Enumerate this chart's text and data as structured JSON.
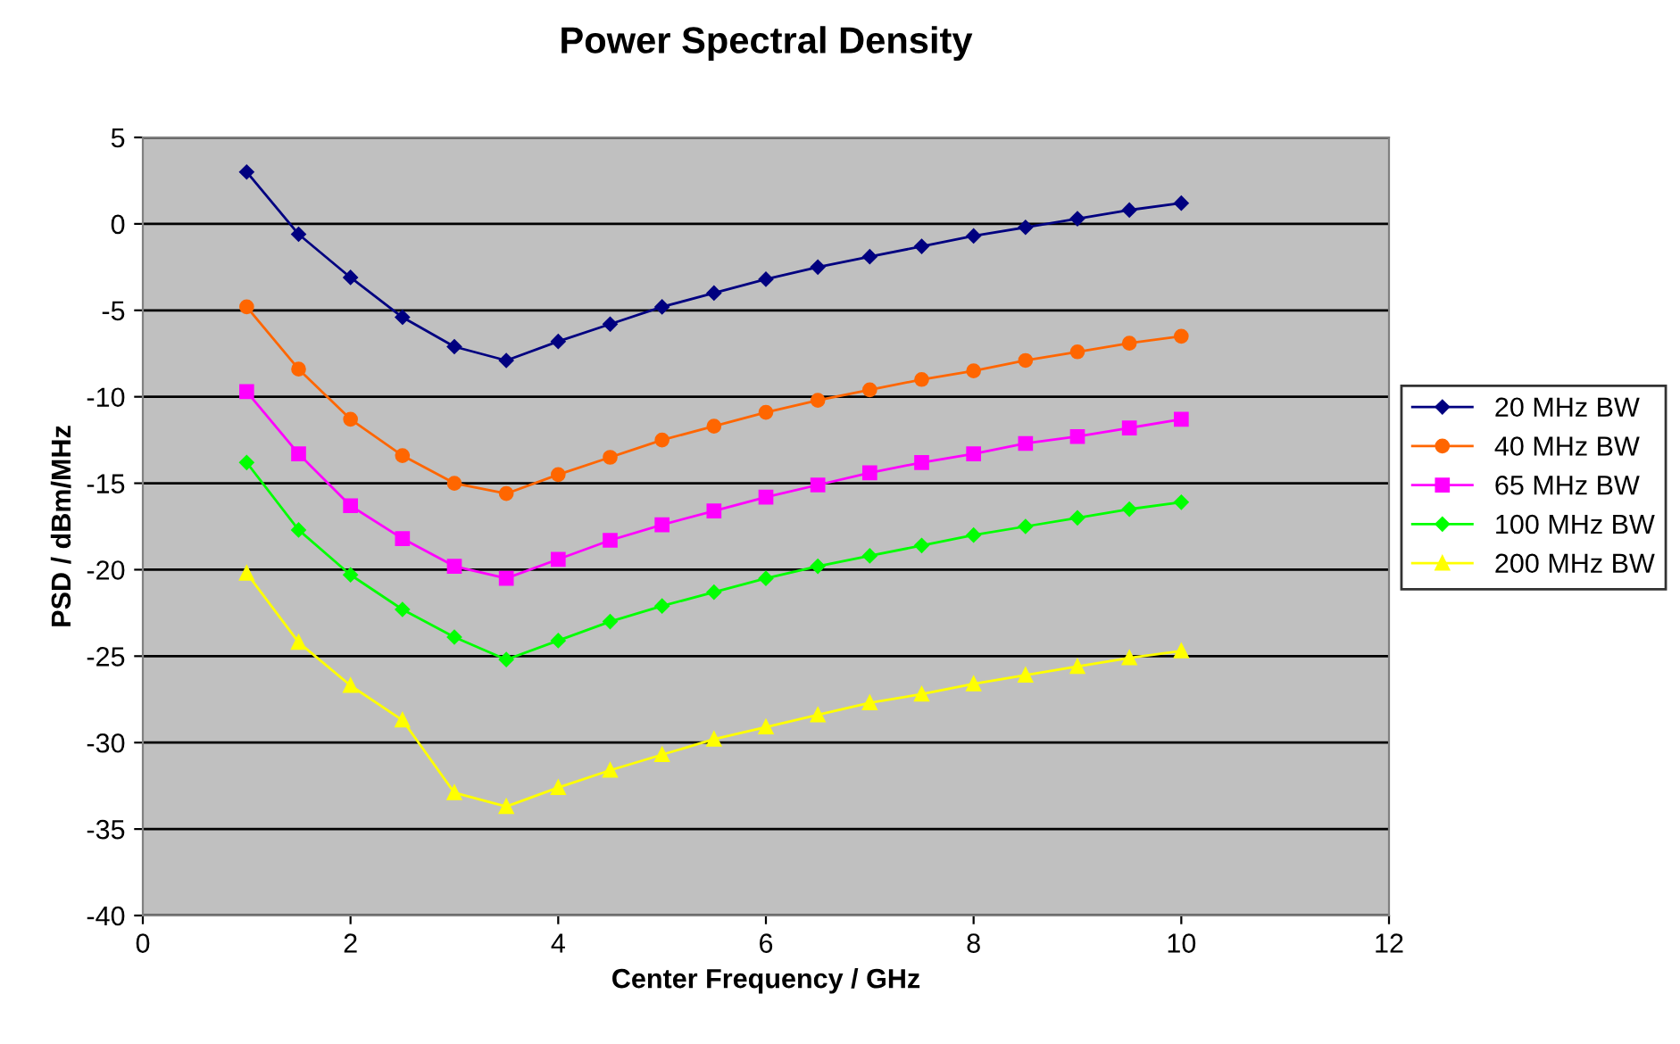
{
  "chart_data": {
    "type": "line",
    "title": "Power Spectral Density",
    "xlabel": "Center Frequency / GHz",
    "ylabel": "PSD / dBm/MHz",
    "x": [
      1,
      1.5,
      2,
      2.5,
      3,
      3.5,
      4,
      4.5,
      5,
      5.5,
      6,
      6.5,
      7,
      7.5,
      8,
      8.5,
      9,
      9.5,
      10
    ],
    "series": [
      {
        "name": "20 MHz BW",
        "color": "#000080",
        "marker": "diamond",
        "values": [
          3.0,
          -0.6,
          -3.1,
          -5.4,
          -7.1,
          -7.9,
          -6.8,
          -5.8,
          -4.8,
          -4.0,
          -3.2,
          -2.5,
          -1.9,
          -1.3,
          -0.7,
          -0.2,
          0.3,
          0.8,
          1.2
        ]
      },
      {
        "name": "40 MHz BW",
        "color": "#ff6600",
        "marker": "circle",
        "values": [
          -4.8,
          -8.4,
          -11.3,
          -13.4,
          -15.0,
          -15.6,
          -14.5,
          -13.5,
          -12.5,
          -11.7,
          -10.9,
          -10.2,
          -9.6,
          -9.0,
          -8.5,
          -7.9,
          -7.4,
          -6.9,
          -6.5
        ]
      },
      {
        "name": "65 MHz BW",
        "color": "#ff00ff",
        "marker": "square",
        "values": [
          -9.7,
          -13.3,
          -16.3,
          -18.2,
          -19.8,
          -20.5,
          -19.4,
          -18.3,
          -17.4,
          -16.6,
          -15.8,
          -15.1,
          -14.4,
          -13.8,
          -13.3,
          -12.7,
          -12.3,
          -11.8,
          -11.3
        ]
      },
      {
        "name": "100 MHz BW",
        "color": "#00ff00",
        "marker": "diamond",
        "values": [
          -13.8,
          -17.7,
          -20.3,
          -22.3,
          -23.9,
          -25.2,
          -24.1,
          -23.0,
          -22.1,
          -21.3,
          -20.5,
          -19.8,
          -19.2,
          -18.6,
          -18.0,
          -17.5,
          -17.0,
          -16.5,
          -16.1
        ]
      },
      {
        "name": "200 MHz BW",
        "color": "#ffff00",
        "marker": "triangle",
        "values": [
          -20.2,
          -24.2,
          -26.7,
          -28.7,
          -32.9,
          -33.7,
          -32.6,
          -31.6,
          -30.7,
          -29.8,
          -29.1,
          -28.4,
          -27.7,
          -27.2,
          -26.6,
          -26.1,
          -25.6,
          -25.1,
          -24.7
        ]
      }
    ],
    "xlim": [
      0,
      12
    ],
    "xticks": [
      0,
      2,
      4,
      6,
      8,
      10,
      12
    ],
    "ylim": [
      -40,
      5
    ],
    "yticks": [
      -40,
      -35,
      -30,
      -25,
      -20,
      -15,
      -10,
      -5,
      0,
      5
    ],
    "grid": "y",
    "legend": "right",
    "line_style": "solid"
  }
}
